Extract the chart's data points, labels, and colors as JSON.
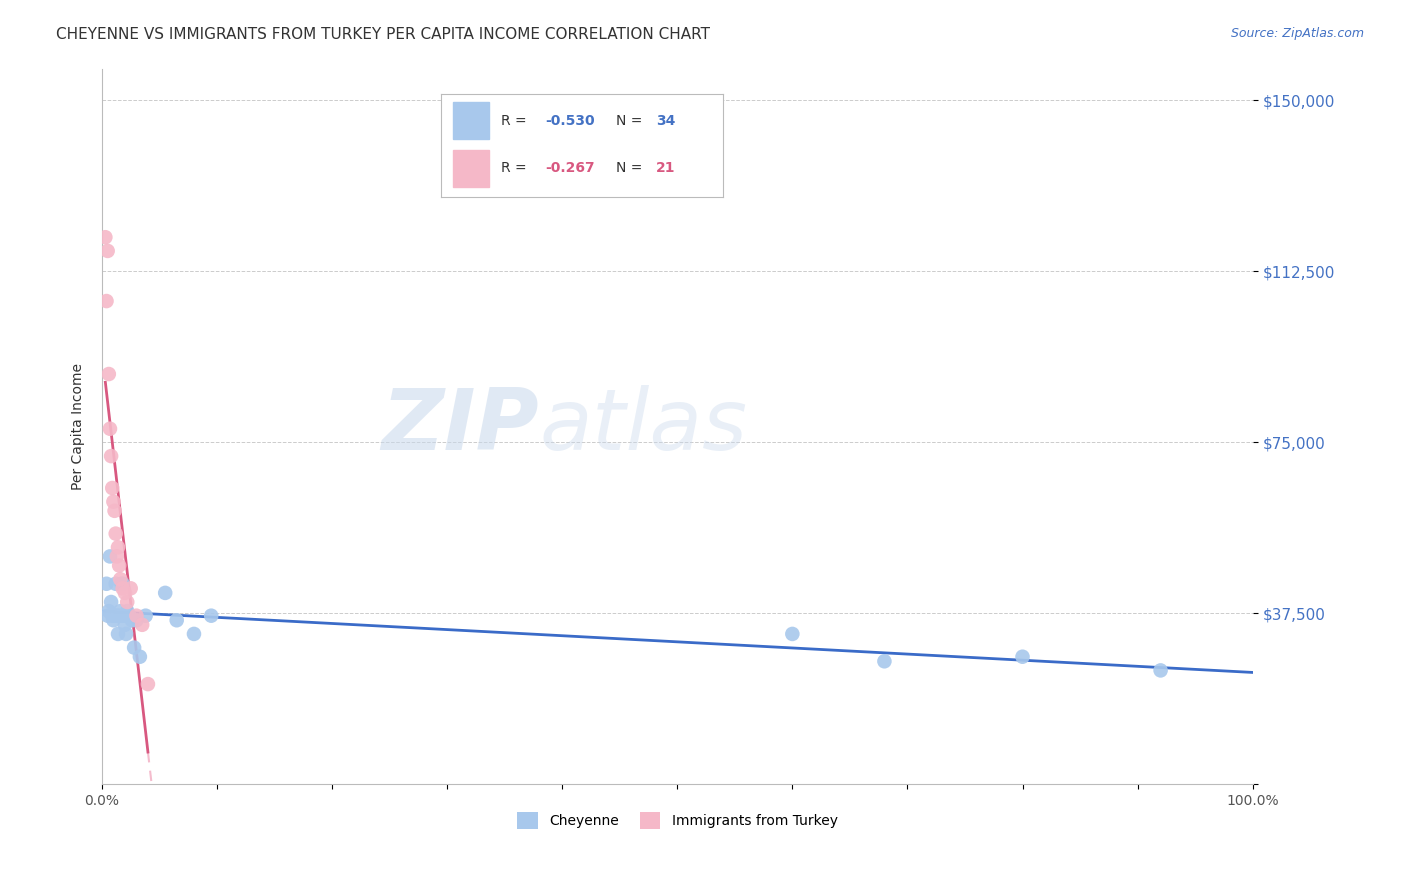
{
  "title": "CHEYENNE VS IMMIGRANTS FROM TURKEY PER CAPITA INCOME CORRELATION CHART",
  "source": "Source: ZipAtlas.com",
  "ylabel": "Per Capita Income",
  "xlabel": "",
  "ylim": [
    0,
    157000
  ],
  "xlim": [
    0,
    1.0
  ],
  "yticks": [
    0,
    37500,
    75000,
    112500,
    150000
  ],
  "ytick_labels": [
    "",
    "$37,500",
    "$75,000",
    "$112,500",
    "$150,000"
  ],
  "xtick_labels": [
    "0.0%",
    "",
    "",
    "",
    "",
    "",
    "",
    "",
    "",
    "",
    "100.0%"
  ],
  "blue_color": "#A8C8EC",
  "pink_color": "#F5B8C8",
  "blue_line_color": "#3A6BC8",
  "pink_line_color": "#D85880",
  "pink_dash_color": "#F0A0B8",
  "watermark_zip": "ZIP",
  "watermark_atlas": "atlas",
  "background_color": "#FFFFFF",
  "cheyenne_x": [
    0.004,
    0.005,
    0.006,
    0.007,
    0.008,
    0.009,
    0.01,
    0.011,
    0.012,
    0.013,
    0.014,
    0.015,
    0.016,
    0.017,
    0.018,
    0.018,
    0.019,
    0.02,
    0.021,
    0.022,
    0.024,
    0.026,
    0.028,
    0.03,
    0.033,
    0.038,
    0.055,
    0.065,
    0.08,
    0.095,
    0.6,
    0.68,
    0.8,
    0.92
  ],
  "cheyenne_y": [
    44000,
    37000,
    38000,
    50000,
    40000,
    37000,
    36000,
    37000,
    44000,
    37000,
    33000,
    37000,
    38000,
    44000,
    37000,
    44000,
    37000,
    35000,
    33000,
    38000,
    37000,
    36000,
    30000,
    36000,
    28000,
    37000,
    42000,
    36000,
    33000,
    37000,
    33000,
    27000,
    28000,
    25000
  ],
  "turkey_x": [
    0.003,
    0.004,
    0.005,
    0.006,
    0.007,
    0.008,
    0.009,
    0.01,
    0.011,
    0.012,
    0.013,
    0.014,
    0.015,
    0.016,
    0.018,
    0.02,
    0.022,
    0.025,
    0.03,
    0.035,
    0.04
  ],
  "turkey_y": [
    120000,
    106000,
    117000,
    90000,
    78000,
    72000,
    65000,
    62000,
    60000,
    55000,
    50000,
    52000,
    48000,
    45000,
    43000,
    42000,
    40000,
    43000,
    37000,
    35000,
    22000
  ],
  "grid_color": "#CCCCCC",
  "title_fontsize": 11,
  "legend_r1": "-0.530",
  "legend_n1": "34",
  "legend_r2": "-0.267",
  "legend_n2": "21"
}
